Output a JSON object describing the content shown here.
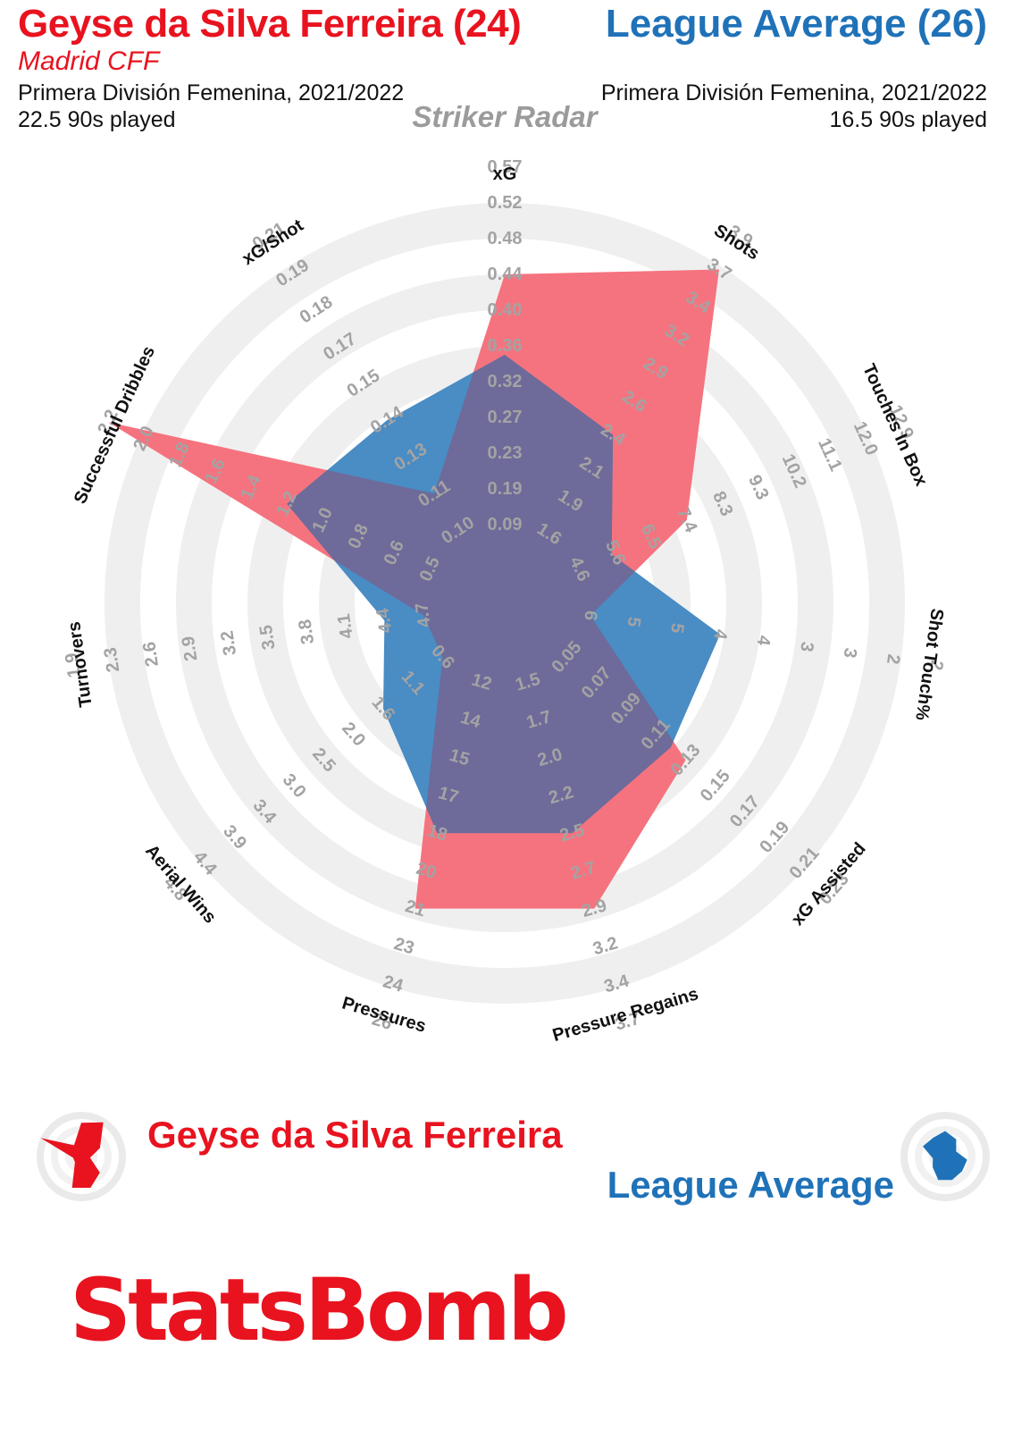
{
  "header": {
    "player_title": "Geyse da Silva Ferreira (24)",
    "club": "Madrid CFF",
    "player_competition": "Primera División Femenina, 2021/2022",
    "player_minutes": "22.5 90s played",
    "average_title": "League Average (26)",
    "average_competition": "Primera División Femenina, 2021/2022",
    "average_minutes": "16.5 90s played",
    "radar_name": "Striker Radar"
  },
  "legend": {
    "player_name": "Geyse da Silva Ferreira",
    "average_name": "League Average"
  },
  "brand": {
    "name": "StatsBomb"
  },
  "colors": {
    "player": "#e8131f",
    "player_fill": "#f5737e",
    "average": "#1f72b8",
    "average_fill": "#4a8cc4",
    "overlap_fill": "#6e6a9a",
    "ring": "#efefef",
    "tick_text": "#a3a3a3"
  },
  "chart_data": {
    "type": "radar",
    "title": "Striker Radar",
    "axes": [
      {
        "name": "xG",
        "ticks": [
          "0.09",
          "0.19",
          "0.23",
          "0.27",
          "0.32",
          "0.36",
          "0.40",
          "0.44",
          "0.48",
          "0.52",
          "0.57"
        ],
        "player": 0.44,
        "average": 0.35
      },
      {
        "name": "Shots",
        "ticks": [
          "1.6",
          "1.9",
          "2.1",
          "2.4",
          "2.6",
          "2.9",
          "3.2",
          "3.4",
          "3.7",
          "3.9"
        ],
        "player": 3.7,
        "average": 2.4
      },
      {
        "name": "Touches In Box",
        "ticks": [
          "4.6",
          "5.6",
          "6.5",
          "7.4",
          "8.3",
          "9.3",
          "10.2",
          "11.1",
          "12.0",
          "12.9"
        ],
        "player": 7.4,
        "average": 5.5
      },
      {
        "name": "Shot Touch%",
        "ticks": [
          "6",
          "5",
          "5",
          "4",
          "4",
          "3",
          "3",
          "2",
          "2"
        ],
        "player": 6,
        "average": 4
      },
      {
        "name": "xG Assisted",
        "ticks": [
          "0.05",
          "0.07",
          "0.09",
          "0.11",
          "0.13",
          "0.15",
          "0.17",
          "0.19",
          "0.21",
          "0.23"
        ],
        "player": 0.13,
        "average": 0.12
      },
      {
        "name": "Pressure Regains",
        "ticks": [
          "1.5",
          "1.7",
          "2.0",
          "2.2",
          "2.5",
          "2.7",
          "2.9",
          "3.2",
          "3.4",
          "3.7"
        ],
        "player": 2.9,
        "average": 2.5
      },
      {
        "name": "Pressures",
        "ticks": [
          "12",
          "14",
          "15",
          "17",
          "18",
          "20",
          "21",
          "23",
          "24",
          "26"
        ],
        "player": 21,
        "average": 18
      },
      {
        "name": "Aerial Wins",
        "ticks": [
          "0.6",
          "1.1",
          "1.6",
          "2.0",
          "2.5",
          "3.0",
          "3.4",
          "3.9",
          "4.4",
          "4.8"
        ],
        "player": 0.6,
        "average": 1.6
      },
      {
        "name": "Turnovers",
        "ticks": [
          "4.7",
          "4.4",
          "4.1",
          "3.8",
          "3.5",
          "3.2",
          "2.9",
          "2.6",
          "2.3",
          "1.9"
        ],
        "player": 4.7,
        "average": 4.4
      },
      {
        "name": "Successful Dribbles",
        "ticks": [
          "0.5",
          "0.6",
          "0.8",
          "1.0",
          "1.2",
          "1.4",
          "1.6",
          "1.8",
          "2.0",
          "2.2"
        ],
        "player": 2.2,
        "average": 1.2
      },
      {
        "name": "xG/Shot",
        "ticks": [
          "0.10",
          "0.11",
          "0.13",
          "0.14",
          "0.15",
          "0.17",
          "0.18",
          "0.19",
          "0.21"
        ],
        "player": 0.11,
        "average": 0.14
      }
    ]
  }
}
